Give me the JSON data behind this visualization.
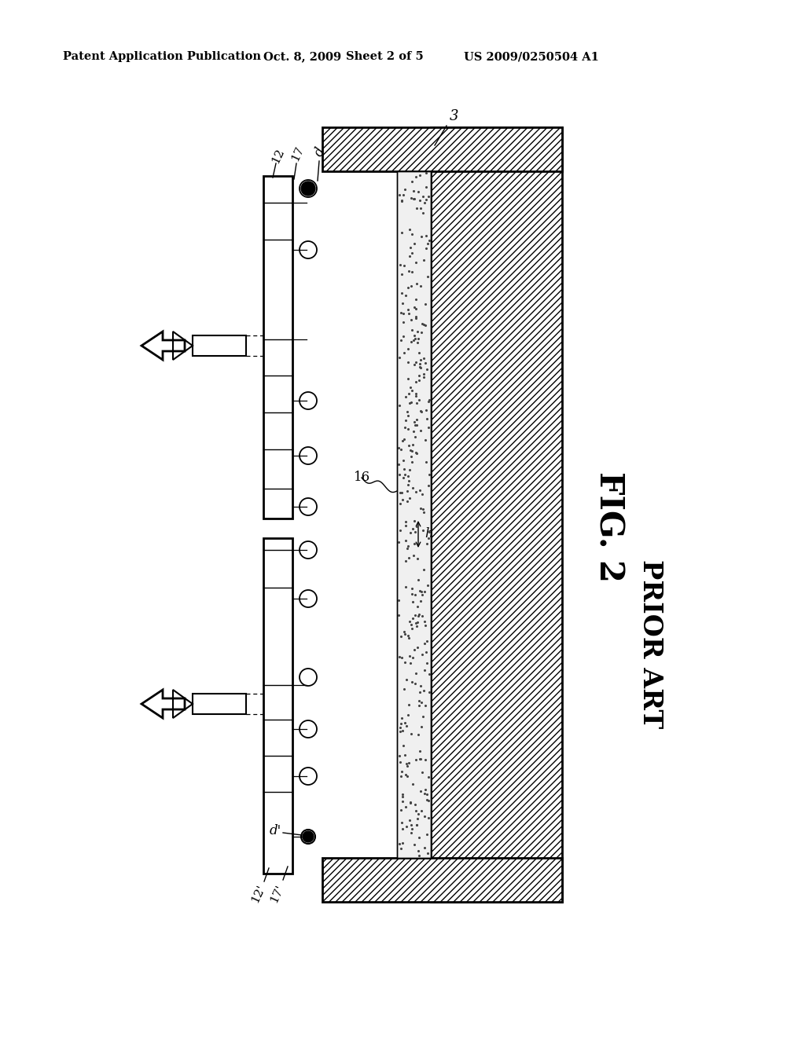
{
  "bg_color": "#ffffff",
  "header_text": "Patent Application Publication",
  "header_date": "Oct. 8, 2009",
  "header_sheet": "Sheet 2 of 5",
  "header_patent": "US 2009/0250504 A1",
  "fig_label": "FIG. 2",
  "fig_sublabel": "PRIOR ART",
  "label_3": "3",
  "label_12": "12",
  "label_12p": "12'",
  "label_17": "17",
  "label_17p": "17'",
  "label_16": "16",
  "label_d": "d",
  "label_dp": "d'",
  "label_h": "h"
}
